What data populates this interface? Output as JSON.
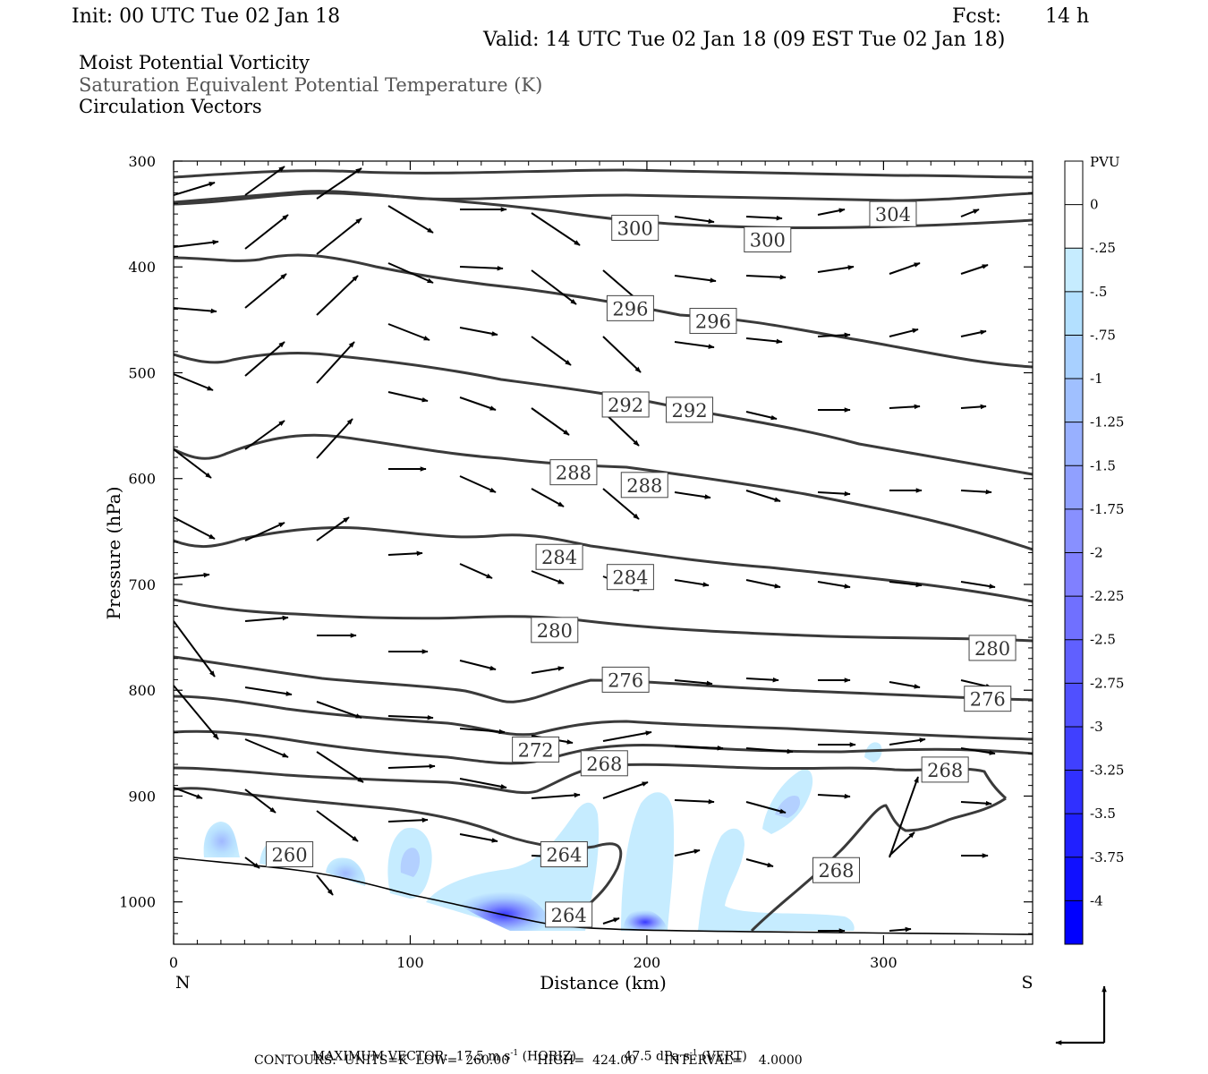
{
  "header": {
    "init": "Init: 00 UTC Tue 02 Jan 18",
    "fcst_label": "Fcst:",
    "fcst_value": "14 h",
    "valid": "Valid: 14 UTC Tue 02 Jan 18 (09 EST Tue 02 Jan 18)"
  },
  "titles": {
    "line1": "Moist Potential Vorticity",
    "line2": "Saturation Equivalent Potential Temperature (K)",
    "line3": "Circulation Vectors"
  },
  "footer": {
    "max_vector_label": "MAXIMUM VECTOR:",
    "max_horiz": "17.5 m s",
    "exp1": "-1",
    "horiz_tag": "(HORIZ)",
    "max_vert": "47.5 dPa s",
    "exp2": "-1",
    "vert_tag": "(VERT)",
    "contours_line": "CONTOURS:  UNITS=K  LOW=  260.00       HIGH=  424.00       INTERVAL=    4.0000"
  },
  "colorbar": {
    "unit": "PVU",
    "labels": [
      "0",
      "-.25",
      "-.5",
      "-.75",
      "-1",
      "-1.25",
      "-1.5",
      "-1.75",
      "-2",
      "-2.25",
      "-2.5",
      "-2.75",
      "-3",
      "-3.25",
      "-3.5",
      "-3.75",
      "-4"
    ],
    "colors": [
      "#ffffff",
      "#ffffff",
      "#c6ecff",
      "#b3e0ff",
      "#a8d0ff",
      "#a0c0ff",
      "#98b0ff",
      "#90a0ff",
      "#8890ff",
      "#8080ff",
      "#7070ff",
      "#6060ff",
      "#5050ff",
      "#4040ff",
      "#3030ff",
      "#2020ff",
      "#1010ff",
      "#0000ff"
    ]
  },
  "chart_data": {
    "type": "cross-section",
    "xlabel": "Distance (km)",
    "ylabel": "Pressure (hPa)",
    "xlim": [
      0,
      363
    ],
    "ylim": [
      1040,
      300
    ],
    "x_ticks": [
      0,
      100,
      200,
      300
    ],
    "y_ticks": [
      300,
      400,
      500,
      600,
      700,
      800,
      900,
      1000
    ],
    "left_end": "N",
    "right_end": "S",
    "contour_labels": [
      {
        "text": "300",
        "x": 195,
        "p": 363
      },
      {
        "text": "300",
        "x": 251,
        "p": 374
      },
      {
        "text": "304",
        "x": 304,
        "p": 350
      },
      {
        "text": "296",
        "x": 193,
        "p": 439
      },
      {
        "text": "296",
        "x": 228,
        "p": 451
      },
      {
        "text": "292",
        "x": 191,
        "p": 530
      },
      {
        "text": "292",
        "x": 218,
        "p": 535
      },
      {
        "text": "288",
        "x": 169,
        "p": 594
      },
      {
        "text": "288",
        "x": 199,
        "p": 606
      },
      {
        "text": "284",
        "x": 163,
        "p": 674
      },
      {
        "text": "284",
        "x": 193,
        "p": 693
      },
      {
        "text": "280",
        "x": 161,
        "p": 743
      },
      {
        "text": "280",
        "x": 346,
        "p": 760
      },
      {
        "text": "276",
        "x": 191,
        "p": 790
      },
      {
        "text": "276",
        "x": 344,
        "p": 808
      },
      {
        "text": "272",
        "x": 153,
        "p": 856
      },
      {
        "text": "268",
        "x": 182,
        "p": 869
      },
      {
        "text": "268",
        "x": 326,
        "p": 875
      },
      {
        "text": "268",
        "x": 280,
        "p": 970
      },
      {
        "text": "264",
        "x": 165,
        "p": 955
      },
      {
        "text": "264",
        "x": 167,
        "p": 1012
      },
      {
        "text": "260",
        "x": 49,
        "p": 955
      }
    ]
  }
}
